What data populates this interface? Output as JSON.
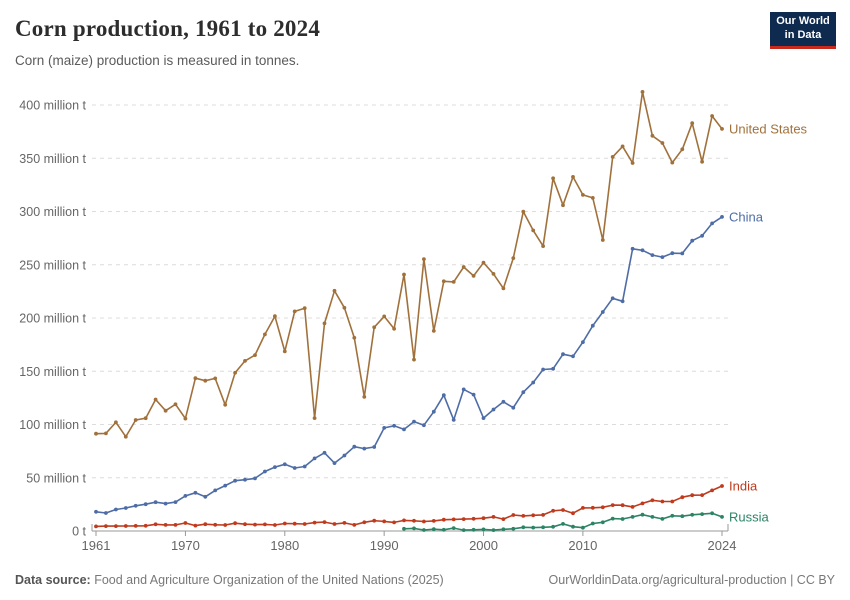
{
  "header": {
    "title": "Corn production, 1961 to 2024",
    "subtitle": "Corn (maize) production is measured in tonnes.",
    "logo": {
      "line1": "Our World",
      "line2": "in Data"
    }
  },
  "footer": {
    "source_label": "Data source:",
    "source_value": " Food and Agriculture Organization of the United Nations (2025)",
    "attribution": "OurWorldinData.org/agricultural-production | CC BY"
  },
  "theme": {
    "grid_color": "#dcdcdc",
    "axis_color": "#999999",
    "tick_text_color": "#666666",
    "logo_bg": "#0e2a4e",
    "logo_accent": "#c7291d"
  },
  "chart_data": {
    "type": "line",
    "title": "Corn production, 1961 to 2024",
    "unit": "tonnes",
    "x_start": 1961,
    "x_end": 2024,
    "xticks": [
      1961,
      1970,
      1980,
      1990,
      2000,
      2010,
      2024
    ],
    "yticks": [
      0,
      50,
      100,
      150,
      200,
      250,
      300,
      350,
      400
    ],
    "ytick_labels": [
      "0 t",
      "50 million t",
      "100 million t",
      "150 million t",
      "200 million t",
      "250 million t",
      "300 million t",
      "350 million t",
      "400 million t"
    ],
    "ylim": [
      0,
      400
    ],
    "grid": true,
    "legend_position": "end-of-line",
    "series": [
      {
        "name": "United States",
        "color": "#A1713C",
        "values": [
          91.4,
          91.6,
          102.1,
          88.5,
          104.2,
          105.9,
          123.5,
          113.0,
          119.0,
          105.5,
          143.5,
          141.1,
          143.3,
          118.5,
          148.5,
          159.7,
          165.2,
          184.6,
          201.7,
          168.6,
          206.2,
          209.2,
          106.0,
          194.9,
          225.5,
          209.6,
          181.4,
          125.9,
          191.3,
          201.5,
          189.9,
          240.8,
          160.9,
          255.3,
          187.9,
          234.5,
          233.9,
          247.9,
          239.5,
          251.9,
          241.4,
          227.8,
          256.2,
          299.9,
          282.3,
          267.5,
          331.2,
          305.9,
          332.5,
          315.6,
          312.8,
          273.2,
          351.3,
          361.1,
          345.5,
          412.3,
          371.1,
          364.3,
          345.9,
          358.4,
          382.9,
          346.7,
          389.7,
          377.6
        ]
      },
      {
        "name": "China",
        "color": "#4E6DA6",
        "values": [
          18.0,
          16.9,
          20.2,
          21.6,
          23.7,
          25.2,
          27.0,
          25.7,
          27.1,
          33.0,
          35.9,
          32.1,
          38.1,
          42.6,
          47.2,
          48.2,
          49.4,
          55.9,
          60.0,
          62.6,
          59.2,
          60.6,
          68.2,
          73.4,
          63.8,
          70.9,
          79.2,
          77.4,
          78.9,
          96.8,
          98.8,
          95.4,
          102.7,
          99.3,
          112.0,
          127.5,
          104.3,
          133.0,
          128.1,
          106.0,
          114.1,
          121.3,
          115.8,
          130.3,
          139.4,
          151.6,
          152.3,
          166.0,
          164.0,
          177.4,
          192.8,
          205.6,
          218.5,
          215.7,
          265.0,
          263.6,
          259.1,
          257.2,
          260.8,
          260.7,
          272.6,
          277.2,
          288.8,
          294.9
        ]
      },
      {
        "name": "India",
        "color": "#C03A1D",
        "values": [
          4.3,
          4.6,
          4.6,
          4.7,
          4.8,
          4.9,
          6.3,
          5.7,
          5.7,
          7.5,
          5.1,
          6.4,
          5.8,
          5.6,
          7.3,
          6.4,
          6.0,
          6.2,
          5.6,
          7.0,
          6.9,
          6.6,
          7.9,
          8.4,
          6.6,
          7.6,
          5.7,
          8.2,
          9.7,
          9.0,
          8.1,
          10.0,
          9.6,
          8.9,
          9.5,
          10.6,
          10.9,
          11.2,
          11.5,
          12.0,
          13.2,
          11.2,
          15.0,
          14.2,
          14.7,
          15.1,
          19.0,
          19.7,
          16.7,
          21.7,
          21.8,
          22.3,
          24.3,
          24.2,
          22.6,
          25.9,
          28.8,
          27.7,
          27.7,
          31.7,
          33.6,
          33.7,
          38.1,
          42.3
        ]
      },
      {
        "name": "Russia",
        "color": "#2C8465",
        "values": [
          null,
          null,
          null,
          null,
          null,
          null,
          null,
          null,
          null,
          null,
          null,
          null,
          null,
          null,
          null,
          null,
          null,
          null,
          null,
          null,
          null,
          null,
          null,
          null,
          null,
          null,
          null,
          null,
          null,
          null,
          null,
          2.1,
          2.4,
          0.9,
          1.7,
          1.1,
          2.7,
          0.8,
          1.1,
          1.5,
          0.8,
          1.6,
          2.1,
          3.5,
          3.2,
          3.5,
          3.9,
          6.7,
          4.0,
          3.1,
          7.0,
          8.2,
          11.6,
          11.3,
          13.2,
          15.3,
          13.2,
          11.4,
          14.3,
          13.9,
          15.2,
          15.9,
          16.6,
          13.2
        ]
      }
    ]
  }
}
